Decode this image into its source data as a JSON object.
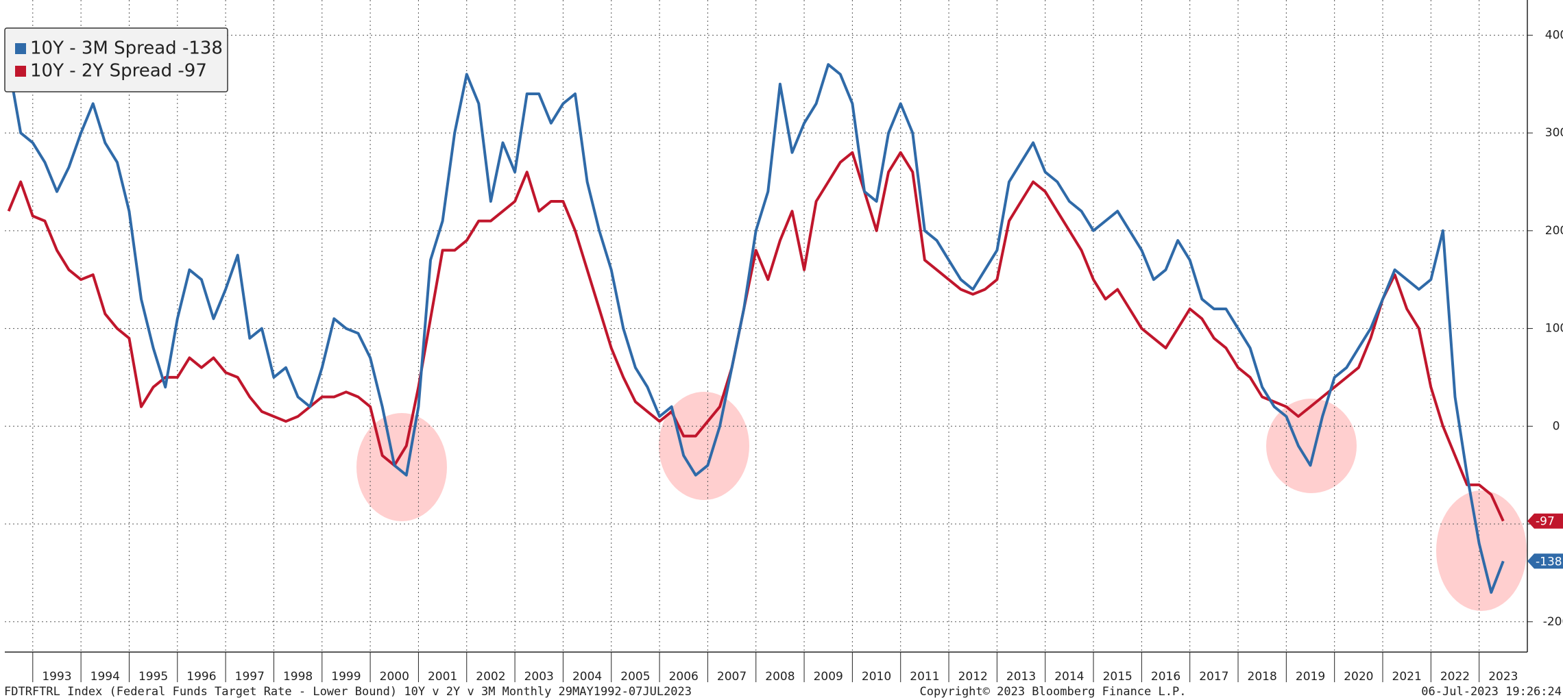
{
  "chart_data": {
    "type": "line",
    "x": [
      1992.5,
      1992.75,
      1993,
      1993.25,
      1993.5,
      1993.75,
      1994,
      1994.25,
      1994.5,
      1994.75,
      1995,
      1995.25,
      1995.5,
      1995.75,
      1996,
      1996.25,
      1996.5,
      1996.75,
      1997,
      1997.25,
      1997.5,
      1997.75,
      1998,
      1998.25,
      1998.5,
      1998.75,
      1999,
      1999.25,
      1999.5,
      1999.75,
      2000,
      2000.25,
      2000.5,
      2000.75,
      2001,
      2001.25,
      2001.5,
      2001.75,
      2002,
      2002.25,
      2002.5,
      2002.75,
      2003,
      2003.25,
      2003.5,
      2003.75,
      2004,
      2004.25,
      2004.5,
      2004.75,
      2005,
      2005.25,
      2005.5,
      2005.75,
      2006,
      2006.25,
      2006.5,
      2006.75,
      2007,
      2007.25,
      2007.5,
      2007.75,
      2008,
      2008.25,
      2008.5,
      2008.75,
      2009,
      2009.25,
      2009.5,
      2009.75,
      2010,
      2010.25,
      2010.5,
      2010.75,
      2011,
      2011.25,
      2011.5,
      2011.75,
      2012,
      2012.25,
      2012.5,
      2012.75,
      2013,
      2013.25,
      2013.5,
      2013.75,
      2014,
      2014.25,
      2014.5,
      2014.75,
      2015,
      2015.25,
      2015.5,
      2015.75,
      2016,
      2016.25,
      2016.5,
      2016.75,
      2017,
      2017.25,
      2017.5,
      2017.75,
      2018,
      2018.25,
      2018.5,
      2018.75,
      2019,
      2019.25,
      2019.5,
      2019.75,
      2020,
      2020.25,
      2020.5,
      2020.75,
      2021,
      2021.25,
      2021.5,
      2021.75,
      2022,
      2022.25,
      2022.5,
      2022.75,
      2023,
      2023.25,
      2023.5
    ],
    "series": [
      {
        "name": "10Y - 3M Spread -138",
        "color": "#2f6aa8",
        "end_label": "-138",
        "values": [
          370,
          300,
          290,
          270,
          240,
          265,
          300,
          330,
          290,
          270,
          220,
          130,
          80,
          40,
          110,
          160,
          150,
          110,
          140,
          175,
          90,
          100,
          50,
          60,
          30,
          20,
          60,
          110,
          100,
          95,
          70,
          20,
          -40,
          -50,
          20,
          170,
          210,
          300,
          360,
          330,
          230,
          290,
          260,
          340,
          340,
          310,
          330,
          340,
          250,
          200,
          160,
          100,
          60,
          40,
          10,
          20,
          -30,
          -50,
          -40,
          0,
          60,
          120,
          200,
          240,
          350,
          280,
          310,
          330,
          370,
          360,
          330,
          240,
          230,
          300,
          330,
          300,
          200,
          190,
          170,
          150,
          140,
          160,
          180,
          250,
          270,
          290,
          260,
          250,
          230,
          220,
          200,
          210,
          220,
          200,
          180,
          150,
          160,
          190,
          170,
          130,
          120,
          120,
          100,
          80,
          40,
          20,
          10,
          -20,
          -40,
          10,
          50,
          60,
          80,
          100,
          130,
          160,
          150,
          140,
          150,
          200,
          30,
          -50,
          -120,
          -170,
          -138
        ]
      },
      {
        "name": "10Y - 2Y Spread -97",
        "color": "#c0162c",
        "end_label": "-97",
        "values": [
          220,
          250,
          215,
          210,
          180,
          160,
          150,
          155,
          115,
          100,
          90,
          20,
          40,
          50,
          50,
          70,
          60,
          70,
          55,
          50,
          30,
          15,
          10,
          5,
          10,
          20,
          30,
          30,
          35,
          30,
          20,
          -30,
          -40,
          -20,
          40,
          110,
          180,
          180,
          190,
          210,
          210,
          220,
          230,
          260,
          220,
          230,
          230,
          200,
          160,
          120,
          80,
          50,
          25,
          15,
          5,
          15,
          -10,
          -10,
          5,
          20,
          60,
          120,
          180,
          150,
          190,
          220,
          160,
          230,
          250,
          270,
          280,
          240,
          200,
          260,
          280,
          260,
          170,
          160,
          150,
          140,
          135,
          140,
          150,
          210,
          230,
          250,
          240,
          220,
          200,
          180,
          150,
          130,
          140,
          120,
          100,
          90,
          80,
          100,
          120,
          110,
          90,
          80,
          60,
          50,
          30,
          25,
          20,
          10,
          20,
          30,
          40,
          50,
          60,
          90,
          130,
          155,
          120,
          100,
          40,
          0,
          -30,
          -60,
          -60,
          -70,
          -97
        ]
      }
    ],
    "xlim": [
      1992.42,
      2024.0
    ],
    "xticks": [
      {
        "value": 1993,
        "label": "1993"
      },
      {
        "value": 1994,
        "label": "1994"
      },
      {
        "value": 1995,
        "label": "1995"
      },
      {
        "value": 1996,
        "label": "1996"
      },
      {
        "value": 1997,
        "label": "1997"
      },
      {
        "value": 1998,
        "label": "1998"
      },
      {
        "value": 1999,
        "label": "1999"
      },
      {
        "value": 2000,
        "label": "2000"
      },
      {
        "value": 2001,
        "label": "2001"
      },
      {
        "value": 2002,
        "label": "2002"
      },
      {
        "value": 2003,
        "label": "2003"
      },
      {
        "value": 2004,
        "label": "2004"
      },
      {
        "value": 2005,
        "label": "2005"
      },
      {
        "value": 2006,
        "label": "2006"
      },
      {
        "value": 2007,
        "label": "2007"
      },
      {
        "value": 2008,
        "label": "2008"
      },
      {
        "value": 2009,
        "label": "2009"
      },
      {
        "value": 2010,
        "label": "2010"
      },
      {
        "value": 2011,
        "label": "2011"
      },
      {
        "value": 2012,
        "label": "2012"
      },
      {
        "value": 2013,
        "label": "2013"
      },
      {
        "value": 2014,
        "label": "2014"
      },
      {
        "value": 2015,
        "label": "2015"
      },
      {
        "value": 2016,
        "label": "2016"
      },
      {
        "value": 2017,
        "label": "2017"
      },
      {
        "value": 2018,
        "label": "2018"
      },
      {
        "value": 2019,
        "label": "2019"
      },
      {
        "value": 2020,
        "label": "2020"
      },
      {
        "value": 2021,
        "label": "2021"
      },
      {
        "value": 2022,
        "label": "2022"
      },
      {
        "value": 2023,
        "label": "2023"
      }
    ],
    "ylim": [
      -231,
      436
    ],
    "yticks": [
      400,
      300,
      200,
      100,
      0,
      -100,
      -200
    ],
    "grid": true,
    "legend": "upper left",
    "footer_left": "FDTRFTRL Index (Federal Funds Target Rate - Lower Bound) 10Y v 2Y v 3M  Monthly 29MAY1992-07JUL2023",
    "footer_center": "Copyright© 2023 Bloomberg Finance L.P.",
    "footer_right": "06-Jul-2023 19:26:24"
  }
}
